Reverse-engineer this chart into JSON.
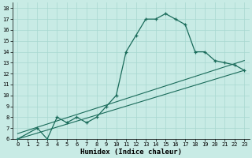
{
  "xlabel": "Humidex (Indice chaleur)",
  "bg_color": "#c8ebe5",
  "grid_color": "#a8d8d0",
  "line_color": "#1a6b5a",
  "xlim": [
    -0.5,
    23.5
  ],
  "ylim": [
    6,
    18.5
  ],
  "xticks": [
    0,
    1,
    2,
    3,
    4,
    5,
    6,
    7,
    8,
    9,
    10,
    11,
    12,
    13,
    14,
    15,
    16,
    17,
    18,
    19,
    20,
    21,
    22,
    23
  ],
  "yticks": [
    6,
    7,
    8,
    9,
    10,
    11,
    12,
    13,
    14,
    15,
    16,
    17,
    18
  ],
  "main_x": [
    0,
    2,
    3,
    4,
    5,
    6,
    7,
    8,
    9,
    10,
    11,
    12,
    13,
    14,
    15,
    16,
    17,
    18,
    19,
    20,
    21,
    22,
    23
  ],
  "main_y": [
    6,
    7,
    6,
    8,
    7.5,
    8,
    7.5,
    8,
    9,
    10,
    14,
    15.5,
    17,
    17,
    17.5,
    17,
    16.5,
    14,
    14,
    13.2,
    13,
    12.8,
    12.3
  ],
  "line2_x": [
    0,
    23
  ],
  "line2_y": [
    6,
    12.3
  ],
  "line3_x": [
    0,
    23
  ],
  "line3_y": [
    6.5,
    13.2
  ],
  "xlabel_fontsize": 6.5,
  "tick_fontsize": 5.0
}
